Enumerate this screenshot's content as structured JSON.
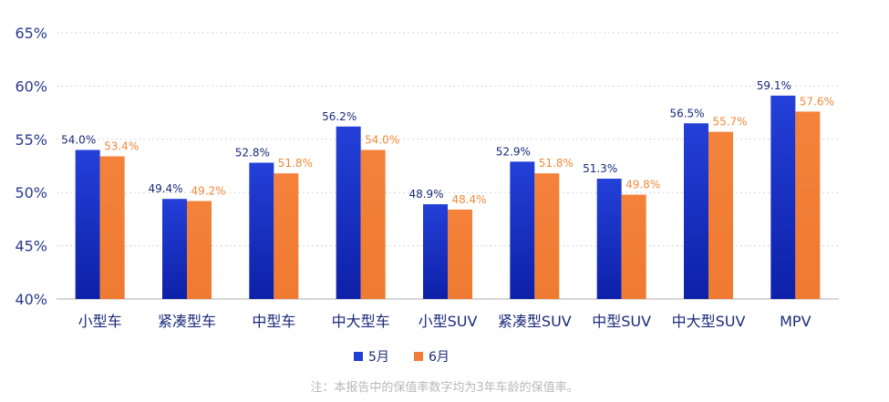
{
  "chart_data": {
    "type": "bar",
    "categories": [
      "小型车",
      "紧凑型车",
      "中型车",
      "中大型车",
      "小型SUV",
      "紧凑型SUV",
      "中型SUV",
      "中大型SUV",
      "MPV"
    ],
    "series": [
      {
        "name": "5月",
        "values": [
          54.0,
          49.4,
          52.8,
          56.2,
          48.9,
          52.9,
          51.3,
          56.5,
          59.1
        ],
        "labels": [
          "54.0%",
          "49.4%",
          "52.8%",
          "56.2%",
          "48.9%",
          "52.9%",
          "51.3%",
          "56.5%",
          "59.1%"
        ]
      },
      {
        "name": "6月",
        "values": [
          53.4,
          49.2,
          51.8,
          54.0,
          48.4,
          51.8,
          49.8,
          55.7,
          57.6
        ],
        "labels": [
          "53.4%",
          "49.2%",
          "51.8%",
          "54.0%",
          "48.4%",
          "51.8%",
          "49.8%",
          "55.7%",
          "57.6%"
        ]
      }
    ],
    "yticks": [
      40,
      45,
      50,
      55,
      60,
      65
    ],
    "ytick_labels": [
      "40%",
      "45%",
      "50%",
      "55%",
      "60%",
      "65%"
    ],
    "ylim": [
      40,
      65
    ],
    "grid": true,
    "legend_position": "bottom-center",
    "colors": {
      "5月": "#1f3fd6",
      "6月": "#f07c3a"
    }
  },
  "footnote": "注：本报告中的保值率数字均为3年车龄的保值率。"
}
